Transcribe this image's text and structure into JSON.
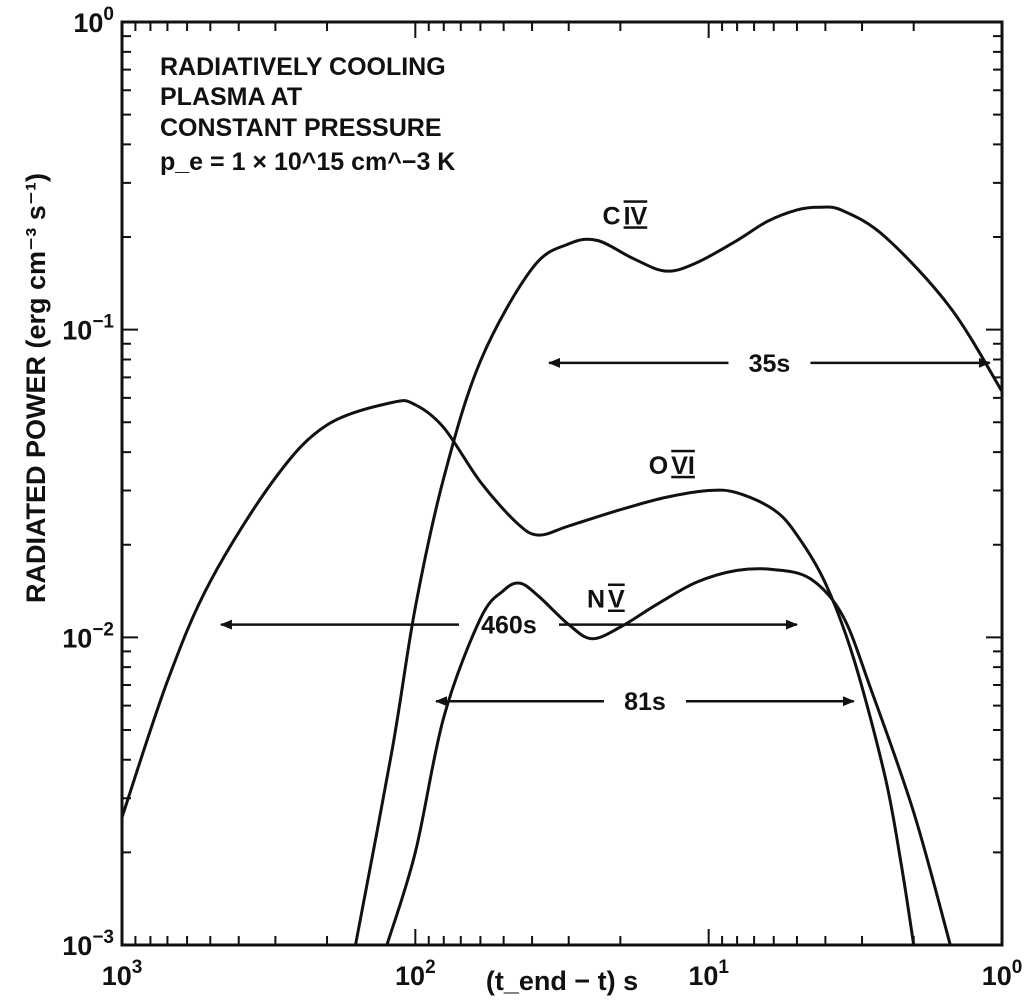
{
  "chart_data": {
    "type": "line",
    "xlabel": "(t_end − t) s",
    "ylabel": "RADIATED POWER (erg cm⁻³ s⁻¹)",
    "x_scale": "log",
    "y_scale": "log",
    "x_reversed": true,
    "xlim": [
      1000,
      1
    ],
    "ylim": [
      0.001,
      1
    ],
    "grid": false,
    "x_ticks": [
      {
        "value": 1000,
        "base": "10",
        "exp": "3"
      },
      {
        "value": 100,
        "base": "10",
        "exp": "2"
      },
      {
        "value": 10,
        "base": "10",
        "exp": "1"
      },
      {
        "value": 1,
        "base": "10",
        "exp": "0"
      }
    ],
    "y_ticks": [
      {
        "value": 1,
        "base": "10",
        "exp": "0"
      },
      {
        "value": 0.1,
        "base": "10",
        "exp": "−1"
      },
      {
        "value": 0.01,
        "base": "10",
        "exp": "−2"
      },
      {
        "value": 0.001,
        "base": "10",
        "exp": "−3"
      }
    ],
    "annotation": [
      "RADIATIVELY COOLING",
      "PLASMA AT",
      "CONSTANT PRESSURE",
      "p_e = 1 × 10^15 cm^−3 K"
    ],
    "series": [
      {
        "name": "C IV",
        "points": [
          [
            160,
            0.001
          ],
          [
            120,
            0.0043
          ],
          [
            100,
            0.0125
          ],
          [
            80,
            0.033
          ],
          [
            60,
            0.079
          ],
          [
            40,
            0.158
          ],
          [
            30,
            0.19
          ],
          [
            24,
            0.195
          ],
          [
            18,
            0.17
          ],
          [
            14,
            0.155
          ],
          [
            11,
            0.165
          ],
          [
            8,
            0.195
          ],
          [
            6.3,
            0.225
          ],
          [
            5,
            0.245
          ],
          [
            4.2,
            0.25
          ],
          [
            3.5,
            0.244
          ],
          [
            2.5,
            0.2
          ],
          [
            1.5,
            0.118
          ],
          [
            1,
            0.063
          ]
        ]
      },
      {
        "name": "O VI",
        "points": [
          [
            1000,
            0.0026
          ],
          [
            700,
            0.0072
          ],
          [
            500,
            0.0152
          ],
          [
            300,
            0.033
          ],
          [
            200,
            0.049
          ],
          [
            120,
            0.058
          ],
          [
            100,
            0.057
          ],
          [
            80,
            0.048
          ],
          [
            60,
            0.032
          ],
          [
            45,
            0.0235
          ],
          [
            38,
            0.0215
          ],
          [
            30,
            0.023
          ],
          [
            20,
            0.026
          ],
          [
            14,
            0.0285
          ],
          [
            10,
            0.03
          ],
          [
            8,
            0.0295
          ],
          [
            6,
            0.026
          ],
          [
            5,
            0.0215
          ],
          [
            4,
            0.015
          ],
          [
            3.2,
            0.0085
          ],
          [
            2.5,
            0.0035
          ],
          [
            2.2,
            0.0018
          ],
          [
            2,
            0.001
          ]
        ]
      },
      {
        "name": "N V",
        "points": [
          [
            125,
            0.001
          ],
          [
            100,
            0.002
          ],
          [
            80,
            0.0055
          ],
          [
            60,
            0.0115
          ],
          [
            50,
            0.0142
          ],
          [
            44,
            0.015
          ],
          [
            38,
            0.0136
          ],
          [
            30,
            0.011
          ],
          [
            25,
            0.0099
          ],
          [
            20,
            0.0108
          ],
          [
            15,
            0.0128
          ],
          [
            11,
            0.0151
          ],
          [
            8,
            0.0165
          ],
          [
            6,
            0.0166
          ],
          [
            4.5,
            0.0155
          ],
          [
            3.5,
            0.0118
          ],
          [
            2.8,
            0.0068
          ],
          [
            2,
            0.0027
          ],
          [
            1.5,
            0.001
          ]
        ]
      }
    ],
    "series_labels": [
      "C",
      "IV",
      "O",
      "VI",
      "N",
      "V"
    ],
    "intervals": [
      {
        "label": "35s",
        "y": 0.078,
        "x_start": 35,
        "x_end": 1.1
      },
      {
        "label": "460s",
        "y": 0.011,
        "x_start": 460,
        "x_end": 5
      },
      {
        "label": "81s",
        "y": 0.0062,
        "x_start": 85,
        "x_end": 3.2
      }
    ]
  }
}
